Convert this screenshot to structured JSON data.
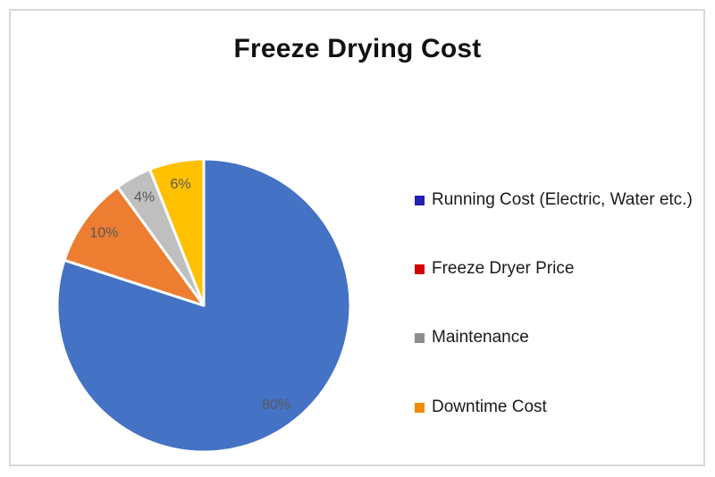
{
  "title": "Freeze Drying Cost",
  "chart_data": {
    "type": "pie",
    "title": "Freeze Drying Cost",
    "direction": "clockwise",
    "start_angle": "12 o'clock",
    "legend_position": "right",
    "data_label_color": "#595959",
    "data_label_position": "inside, mid-angle at 84% radius",
    "slices": [
      {
        "label": "Running Cost (Electric, Water etc.)",
        "value": 80,
        "display": "80%",
        "color": "#4472C4",
        "legend_marker_color": "#2323B3"
      },
      {
        "label": "Freeze Dryer Price",
        "value": 10,
        "display": "10%",
        "color": "#ED7D31",
        "legend_marker_color": "#D40000"
      },
      {
        "label": "Maintenance",
        "value": 4,
        "display": "4%",
        "color": "#BFBFBF",
        "legend_marker_color": "#8C8C8C"
      },
      {
        "label": "Downtime Cost",
        "value": 6,
        "display": "6%",
        "color": "#FFC000",
        "legend_marker_color": "#F28A00"
      }
    ]
  }
}
